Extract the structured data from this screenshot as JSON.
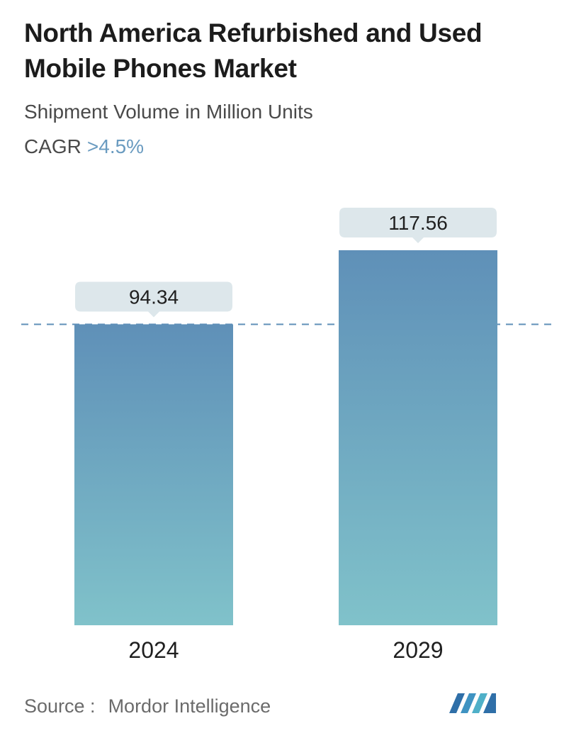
{
  "title": "North America Refurbished and Used Mobile Phones Market",
  "subtitle": "Shipment Volume in Million Units",
  "cagr": {
    "label": "CAGR",
    "value": ">4.5%"
  },
  "source": {
    "label": "Source :",
    "name": "Mordor Intelligence"
  },
  "logo": {
    "icon": "mordor-intelligence-logo-icon"
  },
  "colors": {
    "bar_top": "#5f90b8",
    "bar_bottom": "#80c2ca",
    "label_box": "#dde7eb",
    "dashed_line": "#5f90b8",
    "cagr_accent": "#6a9bc0"
  },
  "chart_data": {
    "type": "bar",
    "categories": [
      "2024",
      "2029"
    ],
    "values": [
      94.34,
      117.56
    ],
    "value_labels": [
      "94.34",
      "117.56"
    ],
    "reference_line": 94.34,
    "ylim": [
      0,
      123
    ],
    "grid": false,
    "legend": "none"
  }
}
